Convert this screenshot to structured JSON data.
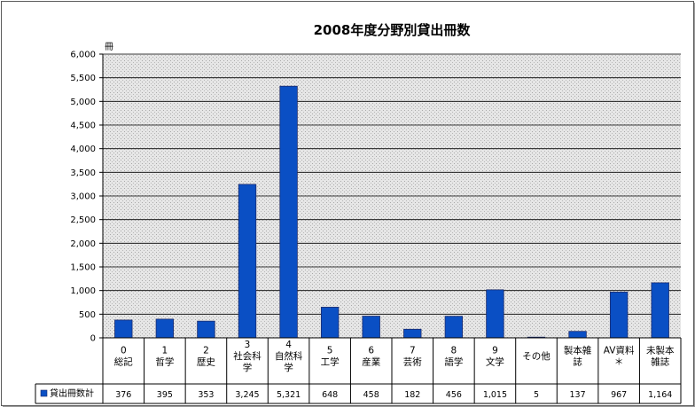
{
  "chart_data": {
    "type": "bar",
    "title": "2008年度分野別貸出冊数",
    "ylabel": "冊",
    "ylim": [
      0,
      6000
    ],
    "yticks": [
      "0",
      "500",
      "1,000",
      "1,500",
      "2,000",
      "2,500",
      "3,000",
      "3,500",
      "4,000",
      "4,500",
      "5,000",
      "5,500",
      "6,000"
    ],
    "ytick_values": [
      0,
      500,
      1000,
      1500,
      2000,
      2500,
      3000,
      3500,
      4000,
      4500,
      5000,
      5500,
      6000
    ],
    "grid": true,
    "categories": [
      [
        "0",
        "総記"
      ],
      [
        "1",
        "哲学"
      ],
      [
        "2",
        "歴史"
      ],
      [
        "3",
        "社会科",
        "学"
      ],
      [
        "4",
        "自然科",
        "学"
      ],
      [
        "5",
        "工学"
      ],
      [
        "6",
        "産業"
      ],
      [
        "7",
        "芸術"
      ],
      [
        "8",
        "語学"
      ],
      [
        "9",
        "文学"
      ],
      [
        "その他"
      ],
      [
        "製本雑",
        "誌"
      ],
      [
        "AV資料",
        "＊"
      ],
      [
        "未製本",
        "雑誌"
      ]
    ],
    "series": [
      {
        "name": "貸出冊数計",
        "color": "#0a4fc4",
        "values": [
          376,
          395,
          353,
          3245,
          5321,
          648,
          458,
          182,
          456,
          1015,
          5,
          137,
          967,
          1164
        ],
        "value_labels": [
          "376",
          "395",
          "353",
          "3,245",
          "5,321",
          "648",
          "458",
          "182",
          "456",
          "1,015",
          "5",
          "137",
          "967",
          "1,164"
        ]
      }
    ],
    "legend_position": "data-table"
  }
}
